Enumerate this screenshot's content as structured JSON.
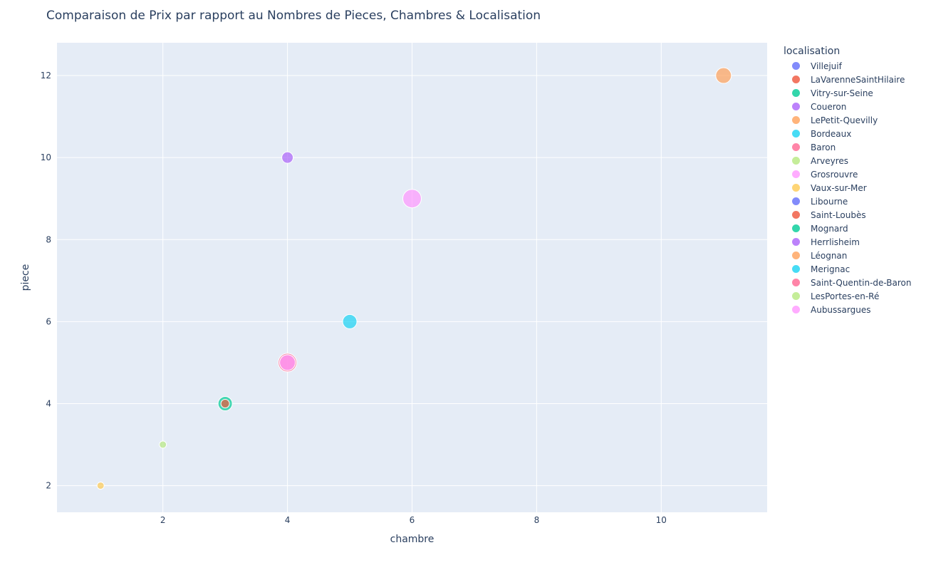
{
  "chart_data": {
    "type": "scatter",
    "title": "Comparaison de Prix par rapport au Nombres de Pieces, Chambres & Localisation",
    "xlabel": "chambre",
    "ylabel": "piece",
    "xlim": [
      0.3,
      11.7
    ],
    "ylim": [
      1.35,
      12.8
    ],
    "xticks": [
      2,
      4,
      6,
      8,
      10
    ],
    "yticks": [
      2,
      4,
      6,
      8,
      10,
      12
    ],
    "grid": true,
    "legend_title": "localisation",
    "legend_position": "right",
    "series": [
      {
        "name": "Villejuif",
        "color": "#636efa",
        "points": []
      },
      {
        "name": "LaVarenneSaintHilaire",
        "color": "#EF553B",
        "points": []
      },
      {
        "name": "Vitry-sur-Seine",
        "color": "#00cc96",
        "points": [
          {
            "x": 3,
            "y": 4,
            "size": 10
          }
        ]
      },
      {
        "name": "Coueron",
        "color": "#ab63fa",
        "points": [
          {
            "x": 4,
            "y": 10,
            "size": 8
          }
        ]
      },
      {
        "name": "LePetit-Quevilly",
        "color": "#FFA15A",
        "points": [
          {
            "x": 11,
            "y": 12,
            "size": 11
          }
        ]
      },
      {
        "name": "Bordeaux",
        "color": "#19d3f3",
        "points": [
          {
            "x": 5,
            "y": 6,
            "size": 10
          }
        ]
      },
      {
        "name": "Baron",
        "color": "#FF6692",
        "points": [
          {
            "x": 4,
            "y": 5,
            "size": 13
          }
        ]
      },
      {
        "name": "Arveyres",
        "color": "#B6E880",
        "points": []
      },
      {
        "name": "Grosrouvre",
        "color": "#FF97FF",
        "points": [
          {
            "x": 6,
            "y": 9,
            "size": 13
          }
        ]
      },
      {
        "name": "Vaux-sur-Mer",
        "color": "#FECB52",
        "points": [
          {
            "x": 1,
            "y": 2,
            "size": 5
          }
        ]
      },
      {
        "name": "Libourne",
        "color": "#636efa",
        "points": []
      },
      {
        "name": "Saint-Loubès",
        "color": "#EF553B",
        "points": [
          {
            "x": 3,
            "y": 4,
            "size": 6
          }
        ]
      },
      {
        "name": "Mognard",
        "color": "#00cc96",
        "points": []
      },
      {
        "name": "Herrlisheim",
        "color": "#ab63fa",
        "points": []
      },
      {
        "name": "Léognan",
        "color": "#FFA15A",
        "points": []
      },
      {
        "name": "Merignac",
        "color": "#19d3f3",
        "points": []
      },
      {
        "name": "Saint-Quentin-de-Baron",
        "color": "#FF6692",
        "points": []
      },
      {
        "name": "LesPortes-en-Ré",
        "color": "#B6E880",
        "points": [
          {
            "x": 2,
            "y": 3,
            "size": 5
          }
        ]
      },
      {
        "name": "Aubussargues",
        "color": "#FF97FF",
        "points": [
          {
            "x": 4,
            "y": 5,
            "size": 11
          }
        ]
      }
    ]
  }
}
